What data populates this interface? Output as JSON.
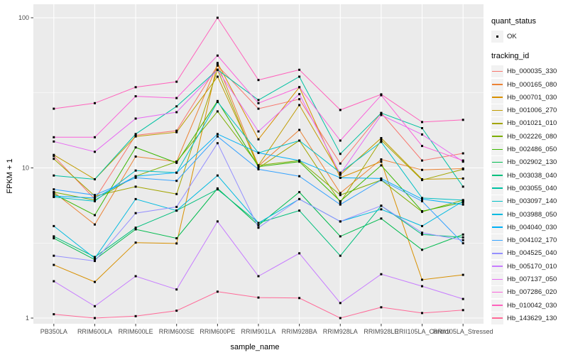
{
  "figure": {
    "background": "#FFFFFF",
    "panel_background": "#EBEBEB",
    "grid_color": "#FFFFFF",
    "axis_text_color": "#4D4D4D",
    "tick_color": "#333333",
    "point_color": "#000000",
    "legend_key_background": "#F2F2F2"
  },
  "chart_data": {
    "type": "line",
    "title": "",
    "xlabel": "sample_name",
    "ylabel": "FPKM + 1",
    "y_scale": "log10",
    "ylim": [
      0.92,
      120
    ],
    "y_ticks": [
      1,
      10,
      100
    ],
    "y_tick_labels": [
      "1",
      "10",
      "100"
    ],
    "y_minor_ticks": [
      3.162,
      31.62
    ],
    "grid": true,
    "legend_position": "right",
    "categories": [
      "PB350LA",
      "RRIM600LA",
      "RRIM600LE",
      "RRIM600SE",
      "RRIM600PE",
      "RRIM901LA",
      "RRIM928BA",
      "RRIM928LA",
      "RRIM928LE",
      "RRII105LA_Control",
      "RRII105LA_Stressed"
    ],
    "series": [
      {
        "name": "Hb_000035_330",
        "color": "#F8766D",
        "values": [
          12.0,
          6.2,
          16.5,
          17.7,
          48.0,
          24.8,
          28.7,
          10.7,
          23.2,
          11.2,
          12.5
        ]
      },
      {
        "name": "Hb_000165_080",
        "color": "#EB8335",
        "values": [
          6.9,
          4.2,
          11.9,
          11.0,
          49.0,
          10.3,
          17.9,
          6.8,
          11.4,
          9.7,
          9.9
        ]
      },
      {
        "name": "Hb_000701_030",
        "color": "#D89000",
        "values": [
          2.26,
          1.74,
          3.18,
          3.14,
          50.0,
          15.5,
          34.5,
          8.6,
          11.0,
          1.8,
          1.94
        ]
      },
      {
        "name": "Hb_001006_270",
        "color": "#C09B00",
        "values": [
          12.2,
          8.4,
          16.2,
          17.3,
          40.5,
          10.4,
          26.2,
          9.0,
          15.8,
          8.4,
          8.5
        ]
      },
      {
        "name": "Hb_001021_010",
        "color": "#A3A500",
        "values": [
          11.5,
          6.5,
          7.5,
          6.7,
          45.0,
          10.0,
          15.2,
          5.9,
          15.3,
          8.3,
          9.8
        ]
      },
      {
        "name": "Hb_002226_080",
        "color": "#7CAE00",
        "values": [
          6.9,
          6.1,
          8.8,
          11.0,
          23.8,
          10.4,
          11.2,
          6.6,
          8.3,
          5.1,
          6.1
        ]
      },
      {
        "name": "Hb_002486_050",
        "color": "#39B600",
        "values": [
          6.7,
          4.85,
          13.7,
          10.8,
          27.9,
          10.2,
          11.0,
          6.0,
          10.4,
          5.15,
          5.9
        ]
      },
      {
        "name": "Hb_002902_130",
        "color": "#00BB4E",
        "values": [
          3.4,
          2.45,
          3.9,
          3.4,
          7.3,
          4.15,
          6.9,
          3.5,
          4.6,
          2.85,
          3.6
        ]
      },
      {
        "name": "Hb_003038_040",
        "color": "#00BF7D",
        "values": [
          3.5,
          2.55,
          4.0,
          5.2,
          7.2,
          4.3,
          5.2,
          2.6,
          5.6,
          3.6,
          3.45
        ]
      },
      {
        "name": "Hb_003055_040",
        "color": "#00C1A3",
        "values": [
          8.9,
          8.4,
          16.8,
          25.7,
          45.0,
          28.3,
          40.5,
          12.4,
          23.2,
          18.4,
          7.5
        ]
      },
      {
        "name": "Hb_003097_140",
        "color": "#00BFC4",
        "values": [
          6.4,
          6.0,
          9.6,
          9.3,
          27.5,
          12.6,
          15.2,
          9.3,
          14.9,
          6.3,
          6.1
        ]
      },
      {
        "name": "Hb_003988_050",
        "color": "#00BAE0",
        "values": [
          4.1,
          2.5,
          6.2,
          5.2,
          8.9,
          4.3,
          6.2,
          4.4,
          5.3,
          4.1,
          6.0
        ]
      },
      {
        "name": "Hb_004040_030",
        "color": "#00B0F6",
        "values": [
          6.5,
          6.3,
          8.8,
          9.3,
          16.8,
          12.6,
          11.2,
          8.6,
          8.5,
          6.2,
          5.7
        ]
      },
      {
        "name": "Hb_004102_170",
        "color": "#35A2FF",
        "values": [
          7.2,
          6.6,
          8.6,
          8.2,
          16.2,
          9.8,
          8.8,
          5.7,
          8.3,
          6.0,
          3.15
        ]
      },
      {
        "name": "Hb_004525_040",
        "color": "#9590FF",
        "values": [
          2.6,
          2.4,
          5.0,
          5.5,
          14.6,
          4.0,
          6.2,
          4.4,
          5.6,
          3.7,
          3.3
        ]
      },
      {
        "name": "Hb_005170_010",
        "color": "#C77CFF",
        "values": [
          1.76,
          1.2,
          1.9,
          1.55,
          4.4,
          1.9,
          2.7,
          1.26,
          1.96,
          1.63,
          1.34
        ]
      },
      {
        "name": "Hb_007137_050",
        "color": "#E76BF3",
        "values": [
          15.0,
          12.8,
          21.3,
          23.5,
          45.0,
          17.5,
          31.0,
          9.1,
          22.5,
          16.7,
          11.0
        ]
      },
      {
        "name": "Hb_007286_020",
        "color": "#FA62DB",
        "values": [
          16.0,
          16.0,
          30.0,
          29.2,
          56.0,
          27.0,
          34.5,
          15.2,
          30.5,
          14.0,
          11.2
        ]
      },
      {
        "name": "Hb_010042_030",
        "color": "#FF62BC",
        "values": [
          24.8,
          27.0,
          34.5,
          37.5,
          100.0,
          38.5,
          45.0,
          24.3,
          30.9,
          20.2,
          20.9
        ]
      },
      {
        "name": "Hb_143629_130",
        "color": "#FF6A98",
        "values": [
          1.06,
          1.0,
          1.03,
          1.12,
          1.5,
          1.37,
          1.36,
          1.0,
          1.18,
          1.08,
          1.13
        ]
      }
    ]
  },
  "legend": {
    "quant_status": {
      "title": "quant_status",
      "ok_label": "OK"
    },
    "tracking_id": {
      "title": "tracking_id"
    }
  }
}
